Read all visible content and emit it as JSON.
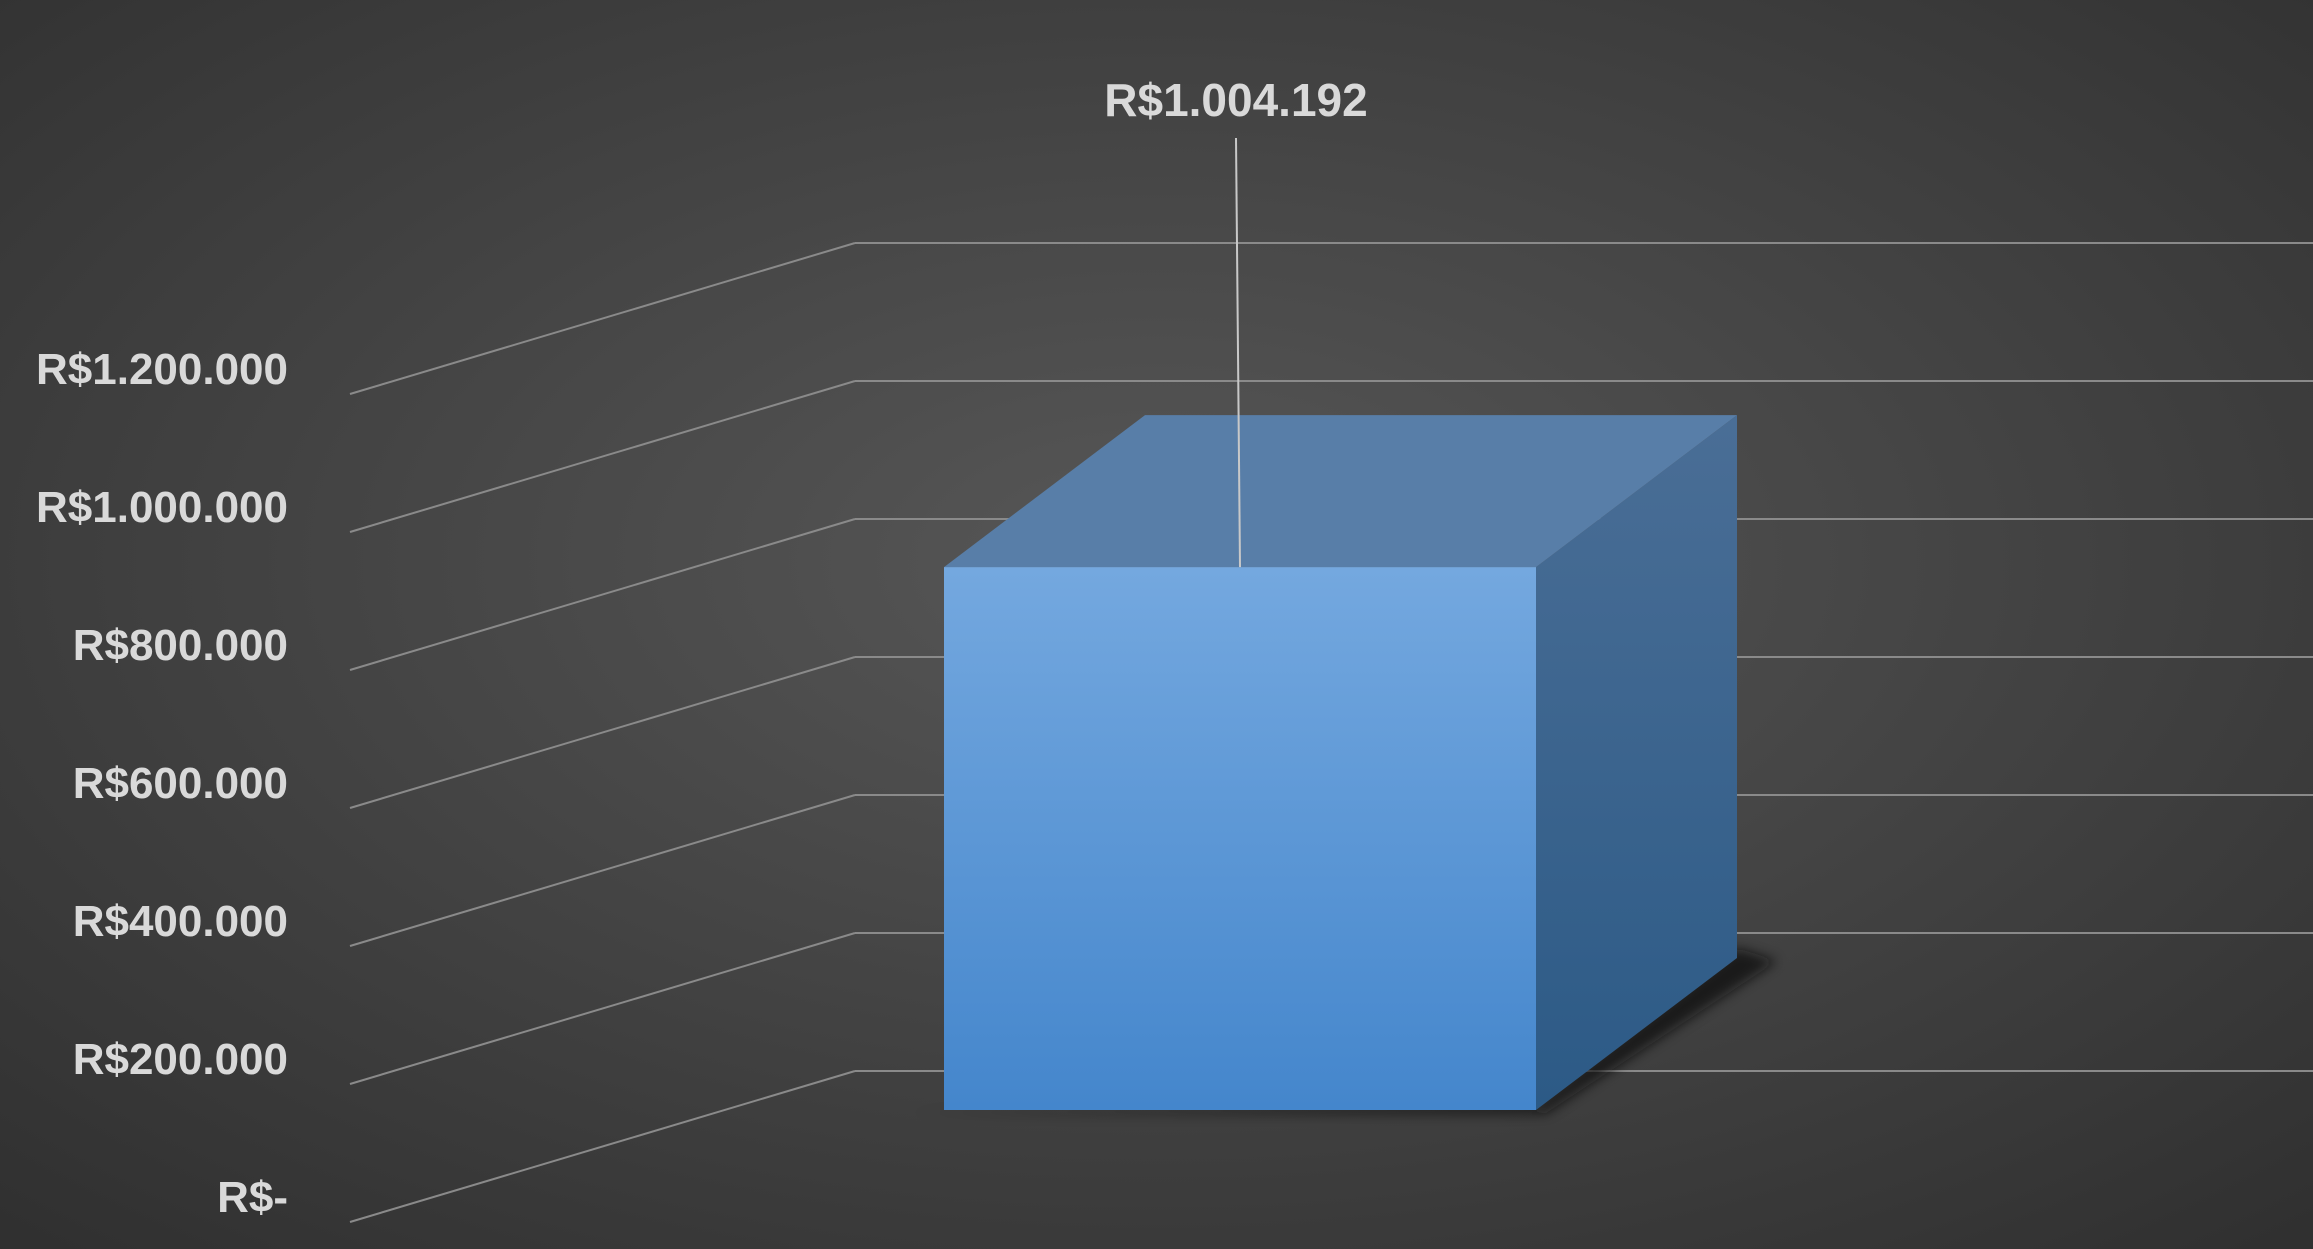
{
  "chart_data": {
    "type": "bar",
    "style": "3d-column",
    "categories": [
      ""
    ],
    "series": [
      {
        "values": [
          1004192
        ],
        "data_labels": [
          "R$1.004.192"
        ]
      }
    ],
    "title": "",
    "xlabel": "",
    "ylabel": "",
    "ylim": [
      0,
      1200000
    ],
    "y_tick_values": [
      0,
      200000,
      400000,
      600000,
      800000,
      1000000,
      1200000
    ],
    "y_tick_labels": [
      "R$-",
      "R$200.000",
      "R$400.000",
      "R$600.000",
      "R$800.000",
      "R$1.000.000",
      "R$1.200.000"
    ],
    "grid": true,
    "legend": "none"
  },
  "colors": {
    "background_center": "#575757",
    "background_edge": "#2f2f2f",
    "gridline": "#8a8a8a",
    "label_text": "#d9d9d9",
    "bar_front_top": "#74a8df",
    "bar_front_bottom": "#4486cc",
    "bar_top": "#587ea8",
    "bar_side_top": "#4a6e96",
    "bar_side_bottom": "#2c5a86"
  }
}
